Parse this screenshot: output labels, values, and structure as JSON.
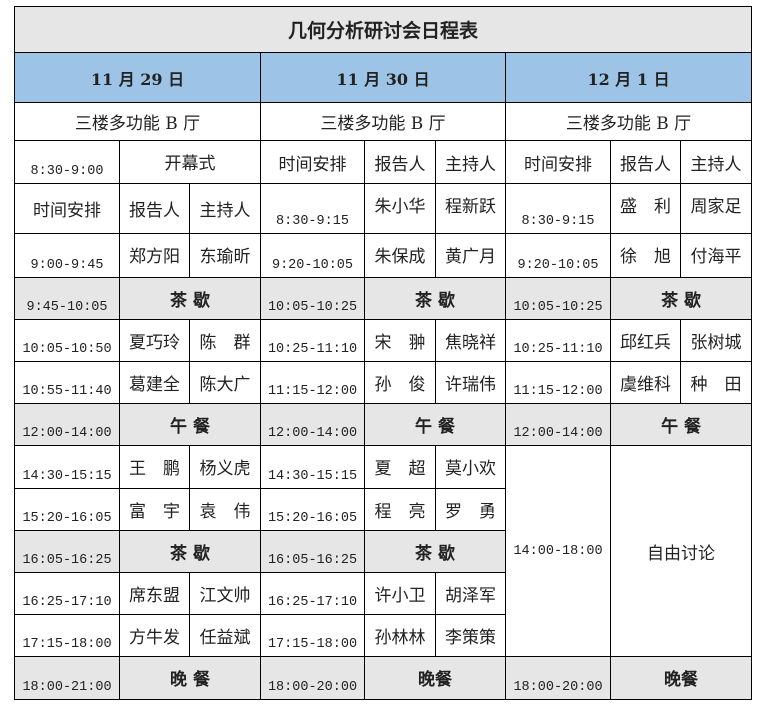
{
  "title": "几何分析研讨会日程表",
  "headers": {
    "time": "时间安排",
    "speaker": "报告人",
    "host": "主持人"
  },
  "colors": {
    "header_blue": "#9dc3e6",
    "break_gray": "#e6e6e6"
  },
  "days": [
    {
      "date": "11 月 29 日",
      "venue": "三楼多功能 B 厅",
      "rows": [
        {
          "type": "event",
          "time": "8:30-9:00",
          "event": "开幕式"
        },
        {
          "type": "header"
        },
        {
          "type": "talk",
          "time": "9:00-9:45",
          "speaker": "郑方阳",
          "host": "东瑜昕"
        },
        {
          "type": "break",
          "time": "9:45-10:05",
          "event": "茶 歇"
        },
        {
          "type": "talk",
          "time": "10:05-10:50",
          "speaker": "夏巧玲",
          "host": "陈　群"
        },
        {
          "type": "talk",
          "time": "10:55-11:40",
          "speaker": "葛建全",
          "host": "陈大广"
        },
        {
          "type": "break",
          "time": "12:00-14:00",
          "event": "午 餐"
        },
        {
          "type": "talk",
          "time": "14:30-15:15",
          "speaker": "王　鹏",
          "host": "杨义虎"
        },
        {
          "type": "talk",
          "time": "15:20-16:05",
          "speaker": "富　宇",
          "host": "袁　伟"
        },
        {
          "type": "break",
          "time": "16:05-16:25",
          "event": "茶 歇"
        },
        {
          "type": "talk",
          "time": "16:25-17:10",
          "speaker": "席东盟",
          "host": "江文帅"
        },
        {
          "type": "talk",
          "time": "17:15-18:00",
          "speaker": "方牛发",
          "host": "任益斌"
        },
        {
          "type": "break",
          "time": "18:00-21:00",
          "event": "晚 餐"
        }
      ]
    },
    {
      "date": "11 月 30 日",
      "venue": "三楼多功能 B 厅",
      "rows": [
        {
          "type": "header"
        },
        {
          "type": "talk",
          "time": "8:30-9:15",
          "speaker": "朱小华",
          "host": "程新跃"
        },
        {
          "type": "talk",
          "time": "9:20-10:05",
          "speaker": "朱保成",
          "host": "黄广月"
        },
        {
          "type": "break",
          "time": "10:05-10:25",
          "event": "茶 歇"
        },
        {
          "type": "talk",
          "time": "10:25-11:10",
          "speaker": "宋　翀",
          "host": "焦晓祥"
        },
        {
          "type": "talk",
          "time": "11:15-12:00",
          "speaker": "孙　俊",
          "host": "许瑞伟"
        },
        {
          "type": "break",
          "time": "12:00-14:00",
          "event": "午 餐"
        },
        {
          "type": "talk",
          "time": "14:30-15:15",
          "speaker": "夏　超",
          "host": "莫小欢"
        },
        {
          "type": "talk",
          "time": "15:20-16:05",
          "speaker": "程　亮",
          "host": "罗　勇"
        },
        {
          "type": "break",
          "time": "16:05-16:25",
          "event": "茶 歇"
        },
        {
          "type": "talk",
          "time": "16:25-17:10",
          "speaker": "许小卫",
          "host": "胡泽军"
        },
        {
          "type": "talk",
          "time": "17:15-18:00",
          "speaker": "孙林林",
          "host": "李策策"
        },
        {
          "type": "break",
          "time": "18:00-20:00",
          "event": "晚餐"
        }
      ]
    },
    {
      "date": "12 月 1 日",
      "venue": "三楼多功能 B 厅",
      "rows": [
        {
          "type": "header"
        },
        {
          "type": "talk",
          "time": "8:30-9:15",
          "speaker": "盛　利",
          "host": "周家足"
        },
        {
          "type": "talk",
          "time": "9:20-10:05",
          "speaker": "徐　旭",
          "host": "付海平"
        },
        {
          "type": "break",
          "time": "10:05-10:25",
          "event": "茶 歇"
        },
        {
          "type": "talk",
          "time": "10:25-11:10",
          "speaker": "邱红兵",
          "host": "张树城"
        },
        {
          "type": "talk",
          "time": "11:15-12:00",
          "speaker": "虞维科",
          "host": "种　田"
        },
        {
          "type": "break",
          "time": "12:00-14:00",
          "event": "午 餐"
        },
        {
          "type": "free",
          "time": "14:00-18:00",
          "event": "自由讨论",
          "span": 5
        },
        null,
        null,
        null,
        null,
        {
          "type": "break",
          "time": "18:00-20:00",
          "event": "晚餐"
        }
      ]
    }
  ]
}
